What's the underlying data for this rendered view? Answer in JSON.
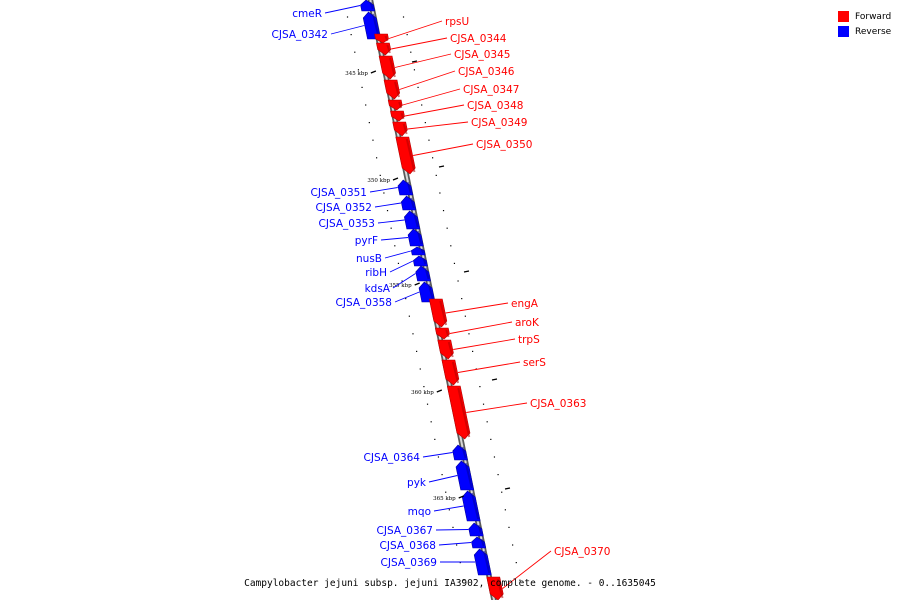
{
  "caption": "Campylobacter jejuni subsp. jejuni IA3902, complete genome. - 0..1635045",
  "legend": {
    "forward": {
      "label": "Forward",
      "color": "#ff0000"
    },
    "reverse": {
      "label": "Reverse",
      "color": "#0000ff"
    }
  },
  "colors": {
    "forward": "#ff0000",
    "forward_dark": "#b30000",
    "reverse": "#0000ff",
    "reverse_dark": "#0000a0",
    "backbone": "#9a9a9a",
    "tick": "#000000"
  },
  "ruler": [
    "345 kbp",
    "350 kbp",
    "355 kbp",
    "360 kbp",
    "365 kbp"
  ],
  "genes": [
    {
      "name": "cmeR",
      "strand": "reverse"
    },
    {
      "name": "CJSA_0342",
      "strand": "reverse"
    },
    {
      "name": "rpsU",
      "strand": "forward"
    },
    {
      "name": "CJSA_0344",
      "strand": "forward"
    },
    {
      "name": "CJSA_0345",
      "strand": "forward"
    },
    {
      "name": "CJSA_0346",
      "strand": "forward"
    },
    {
      "name": "CJSA_0347",
      "strand": "forward"
    },
    {
      "name": "CJSA_0348",
      "strand": "forward"
    },
    {
      "name": "CJSA_0349",
      "strand": "forward"
    },
    {
      "name": "CJSA_0350",
      "strand": "forward"
    },
    {
      "name": "CJSA_0351",
      "strand": "reverse"
    },
    {
      "name": "CJSA_0352",
      "strand": "reverse"
    },
    {
      "name": "CJSA_0353",
      "strand": "reverse"
    },
    {
      "name": "pyrF",
      "strand": "reverse"
    },
    {
      "name": "nusB",
      "strand": "reverse"
    },
    {
      "name": "ribH",
      "strand": "reverse"
    },
    {
      "name": "kdsA",
      "strand": "reverse"
    },
    {
      "name": "CJSA_0358",
      "strand": "reverse"
    },
    {
      "name": "engA",
      "strand": "forward"
    },
    {
      "name": "aroK",
      "strand": "forward"
    },
    {
      "name": "trpS",
      "strand": "forward"
    },
    {
      "name": "serS",
      "strand": "forward"
    },
    {
      "name": "CJSA_0363",
      "strand": "forward"
    },
    {
      "name": "CJSA_0364",
      "strand": "reverse"
    },
    {
      "name": "pyk",
      "strand": "reverse"
    },
    {
      "name": "mqo",
      "strand": "reverse"
    },
    {
      "name": "CJSA_0367",
      "strand": "reverse"
    },
    {
      "name": "CJSA_0368",
      "strand": "reverse"
    },
    {
      "name": "CJSA_0369",
      "strand": "reverse"
    },
    {
      "name": "CJSA_0370",
      "strand": "forward"
    }
  ]
}
